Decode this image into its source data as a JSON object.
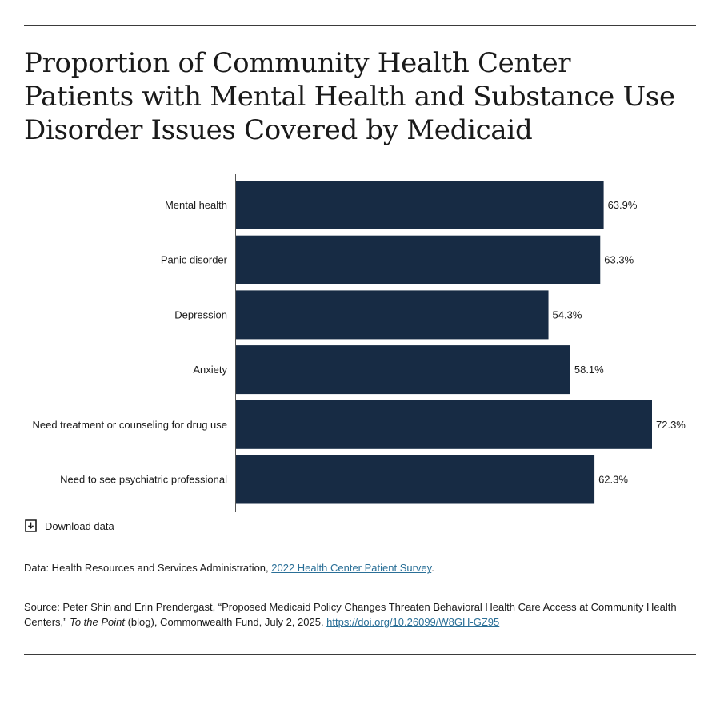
{
  "title": "Proportion of Community Health Center Patients with Mental Health and Substance Use Disorder Issues Covered by Medicaid",
  "colors": {
    "bar": "#172b44",
    "axis": "#555555",
    "link": "#2a6f97",
    "rule": "#3b3b3b"
  },
  "chart_data": {
    "type": "bar",
    "orientation": "horizontal",
    "categories": [
      "Mental health",
      "Panic disorder",
      "Depression",
      "Anxiety",
      "Need treatment or counseling for drug use",
      "Need to see psychiatric professional"
    ],
    "values": [
      63.9,
      63.3,
      54.3,
      58.1,
      72.3,
      62.3
    ],
    "value_labels": [
      "63.9%",
      "63.3%",
      "54.3%",
      "58.1%",
      "72.3%",
      "62.3%"
    ],
    "unit": "%",
    "xlim": [
      0,
      72.3
    ],
    "grid": false,
    "legend": "none"
  },
  "download": {
    "label": "Download data",
    "icon": "download-icon"
  },
  "notes": {
    "data_prefix": "Data: Health Resources and Services Administration, ",
    "data_link": "2022 Health Center Patient Survey",
    "data_suffix": ".",
    "source_prefix": "Source: Peter Shin and Erin Prendergast, “Proposed Medicaid Policy Changes Threaten Behavioral Health Care Access at Community Health Centers,” ",
    "source_italic": "To the Point",
    "source_middle": " (blog), Commonwealth Fund, July 2, 2025. ",
    "source_link": "https://doi.org/10.26099/W8GH-GZ95"
  }
}
